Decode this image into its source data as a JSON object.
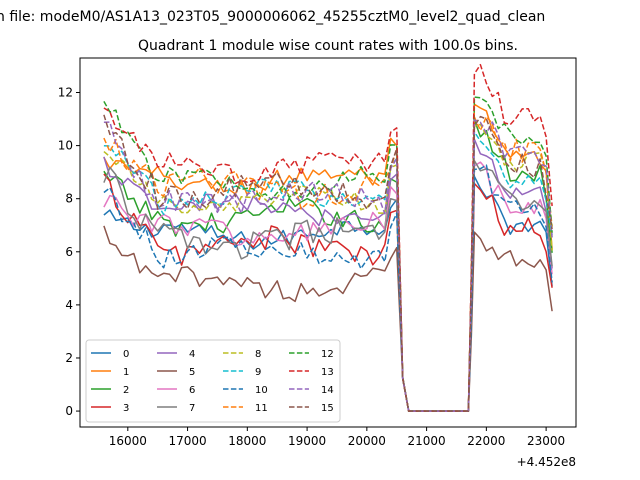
{
  "suptitle": "n file: modeM0/AS1A13_023T05_9000006062_45255cztM0_level2_quad_clean",
  "chart_data": {
    "type": "line",
    "title": "Quadrant 1 module wise count rates with 100.0s bins.",
    "xlabel": "",
    "ylabel": "",
    "x_offset_label": "+4.452e8",
    "xlim": [
      15200,
      23500
    ],
    "ylim": [
      -0.6,
      13.3
    ],
    "x_ticks": [
      16000,
      17000,
      18000,
      19000,
      20000,
      21000,
      22000,
      23000
    ],
    "x_tick_labels": [
      "16000",
      "17000",
      "18000",
      "19000",
      "20000",
      "21000",
      "22000",
      "23000"
    ],
    "y_ticks": [
      0,
      2,
      4,
      6,
      8,
      10,
      12
    ],
    "y_tick_labels": [
      "0",
      "2",
      "4",
      "6",
      "8",
      "10",
      "12"
    ],
    "grid": false,
    "legend_position": "lower-left",
    "legend_columns": 4,
    "active_segments": [
      [
        15600,
        20500
      ],
      [
        21800,
        23100
      ]
    ],
    "gap": {
      "drop_start": 20500,
      "zero_start": 20700,
      "zero_end": 21700,
      "rise_end": 21800
    },
    "series": [
      {
        "name": "0",
        "color": "#1f77b4",
        "dash": "solid",
        "level1": 6.7,
        "level2": 7.0,
        "start": 7.3,
        "peak2": 8.5,
        "end": 5.0
      },
      {
        "name": "1",
        "color": "#ff7f0e",
        "dash": "solid",
        "level1": 8.7,
        "level2": 9.5,
        "start": 9.4,
        "peak2": 11.2,
        "end": 6.0
      },
      {
        "name": "2",
        "color": "#2ca02c",
        "dash": "solid",
        "level1": 7.3,
        "level2": 9.0,
        "start": 8.8,
        "peak2": 10.6,
        "end": 6.3
      },
      {
        "name": "3",
        "color": "#d62728",
        "dash": "solid",
        "level1": 6.2,
        "level2": 6.8,
        "start": 8.6,
        "peak2": 8.2,
        "end": 4.5
      },
      {
        "name": "4",
        "color": "#9467bd",
        "dash": "solid",
        "level1": 7.6,
        "level2": 8.2,
        "start": 9.3,
        "peak2": 10.0,
        "end": 5.6
      },
      {
        "name": "5",
        "color": "#8c564b",
        "dash": "solid",
        "level1": 4.8,
        "level2": 5.8,
        "start": 6.6,
        "peak2": 6.5,
        "end": 3.6
      },
      {
        "name": "6",
        "color": "#e377c2",
        "dash": "solid",
        "level1": 6.8,
        "level2": 7.6,
        "start": 8.1,
        "peak2": 9.0,
        "end": 5.4
      },
      {
        "name": "7",
        "color": "#7f7f7f",
        "dash": "solid",
        "level1": 6.5,
        "level2": 7.8,
        "start": 9.0,
        "peak2": 9.2,
        "end": 5.2
      },
      {
        "name": "8",
        "color": "#bcbd22",
        "dash": "dashed",
        "level1": 7.9,
        "level2": 9.4,
        "start": 10.0,
        "peak2": 10.6,
        "end": 6.2
      },
      {
        "name": "9",
        "color": "#17becf",
        "dash": "dashed",
        "level1": 8.1,
        "level2": 8.8,
        "start": 10.2,
        "peak2": 10.4,
        "end": 6.4
      },
      {
        "name": "10",
        "color": "#1f77b4",
        "dash": "dashed",
        "level1": 6.0,
        "level2": 7.8,
        "start": 8.4,
        "peak2": 9.0,
        "end": 5.0
      },
      {
        "name": "11",
        "color": "#ff7f0e",
        "dash": "dashed",
        "level1": 8.4,
        "level2": 9.8,
        "start": 10.4,
        "peak2": 11.0,
        "end": 6.6
      },
      {
        "name": "12",
        "color": "#2ca02c",
        "dash": "dashed",
        "level1": 8.6,
        "level2": 10.4,
        "start": 11.7,
        "peak2": 11.8,
        "end": 6.8
      },
      {
        "name": "13",
        "color": "#d62728",
        "dash": "dashed",
        "level1": 9.2,
        "level2": 11.0,
        "start": 11.4,
        "peak2": 12.7,
        "end": 7.4
      },
      {
        "name": "14",
        "color": "#9467bd",
        "dash": "dashed",
        "level1": 8.0,
        "level2": 9.6,
        "start": 10.8,
        "peak2": 11.0,
        "end": 6.6
      },
      {
        "name": "15",
        "color": "#8c564b",
        "dash": "dashed",
        "level1": 8.3,
        "level2": 9.3,
        "start": 11.0,
        "peak2": 10.8,
        "end": 6.4
      }
    ]
  }
}
